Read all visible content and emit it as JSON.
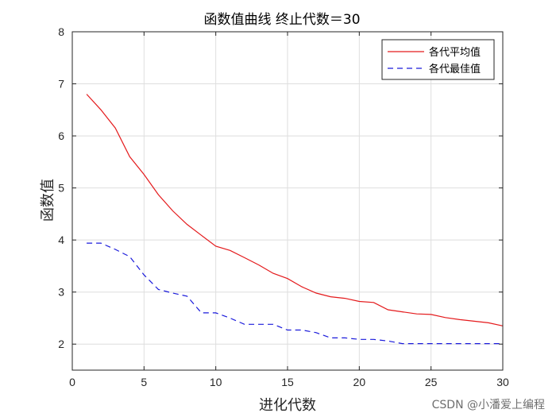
{
  "chart_data": {
    "type": "line",
    "title": "函数值曲线 终止代数＝30",
    "xlabel": "进化代数",
    "ylabel": "函数值",
    "xlim": [
      0,
      30
    ],
    "ylim": [
      1.5,
      8
    ],
    "xticks": [
      0,
      5,
      10,
      15,
      20,
      25,
      30
    ],
    "yticks": [
      2,
      3,
      4,
      5,
      6,
      7,
      8
    ],
    "grid": true,
    "legend_position": "top-right",
    "x": [
      1,
      2,
      3,
      4,
      5,
      6,
      7,
      8,
      9,
      10,
      11,
      12,
      13,
      14,
      15,
      16,
      17,
      18,
      19,
      20,
      21,
      22,
      23,
      24,
      25,
      26,
      27,
      28,
      29,
      30
    ],
    "series": [
      {
        "name": "各代平均值",
        "color": "#e41a1c",
        "style": "solid",
        "values": [
          6.8,
          6.5,
          6.15,
          5.6,
          5.26,
          4.87,
          4.56,
          4.3,
          4.09,
          3.88,
          3.8,
          3.66,
          3.52,
          3.36,
          3.26,
          3.1,
          2.98,
          2.91,
          2.88,
          2.82,
          2.8,
          2.66,
          2.62,
          2.58,
          2.57,
          2.51,
          2.47,
          2.44,
          2.41,
          2.35
        ]
      },
      {
        "name": "各代最佳值",
        "color": "#1a1adb",
        "style": "dashed",
        "values": [
          3.94,
          3.94,
          3.82,
          3.68,
          3.33,
          3.05,
          2.98,
          2.92,
          2.6,
          2.6,
          2.5,
          2.38,
          2.38,
          2.38,
          2.27,
          2.27,
          2.22,
          2.12,
          2.12,
          2.09,
          2.09,
          2.06,
          2.01,
          2.01,
          2.01,
          2.01,
          2.01,
          2.01,
          2.01,
          2.01
        ]
      }
    ]
  },
  "watermark": "CSDN @小潘爱上编程"
}
